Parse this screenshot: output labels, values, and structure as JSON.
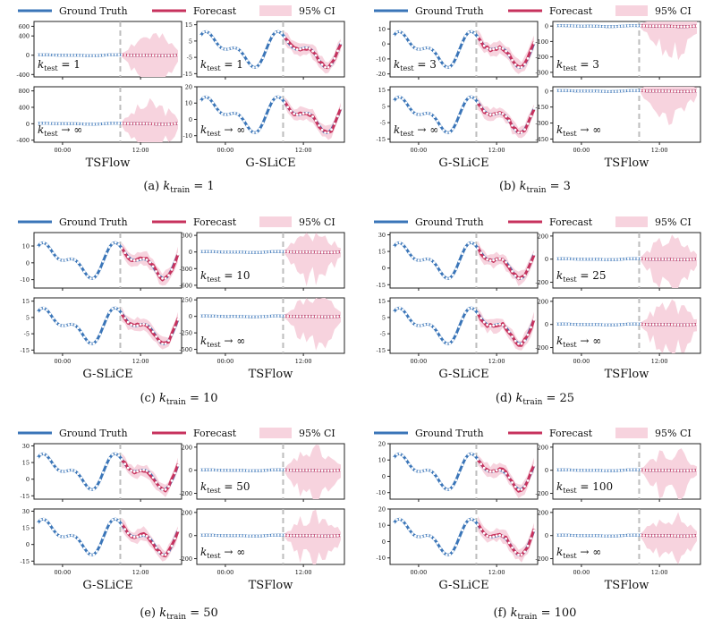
{
  "legend": {
    "ground_truth": "Ground Truth",
    "forecast": "Forecast",
    "ci": "95% CI"
  },
  "colors": {
    "ground_truth": "#3a75b8",
    "forecast": "#c7325d",
    "ci": "#f7d3de",
    "divider": "#bdbdbd",
    "marker": "#ffffff"
  },
  "time_ticks": [
    "00:00",
    "12:00"
  ],
  "caption_prefix": "k",
  "caption_sub": "train",
  "klabel_prefix": "k",
  "klabel_sub": "test",
  "chart_data": [
    {
      "caption": "(a)",
      "k_train": "1",
      "models": [
        "TSFlow",
        "G-SLiCE"
      ],
      "panels": [
        {
          "model": "TSFlow",
          "row": 0,
          "k_test": "1",
          "yticks": [
            -400,
            0,
            400,
            600
          ],
          "ylim": [
            -450,
            700
          ],
          "scale": 20,
          "seed": 2
        },
        {
          "model": "G-SLiCE",
          "row": 0,
          "k_test": "1",
          "yticks": [
            -15,
            -5,
            5,
            15
          ],
          "ylim": [
            -17,
            17
          ],
          "scale": 1,
          "seed": 1
        },
        {
          "model": "TSFlow",
          "row": 1,
          "k_test": "∞",
          "yticks": [
            -400,
            0,
            400,
            800
          ],
          "ylim": [
            -450,
            900
          ],
          "scale": 22,
          "seed": 3
        },
        {
          "model": "G-SLiCE",
          "row": 1,
          "k_test": "∞",
          "yticks": [
            -10,
            0,
            10,
            20
          ],
          "ylim": [
            -14,
            20
          ],
          "scale": 1,
          "seed": 4
        }
      ]
    },
    {
      "caption": "(b)",
      "k_train": "3",
      "models": [
        "G-SLiCE",
        "TSFlow"
      ],
      "panels": [
        {
          "model": "G-SLiCE",
          "row": 0,
          "k_test": "3",
          "yticks": [
            -20,
            -10,
            0,
            10
          ],
          "ylim": [
            -22,
            15
          ],
          "scale": 1,
          "seed": 5
        },
        {
          "model": "TSFlow",
          "row": 0,
          "k_test": "3",
          "yticks": [
            -300,
            -200,
            -100,
            0
          ],
          "ylim": [
            -330,
            30
          ],
          "scale": 18,
          "seed": 6
        },
        {
          "model": "G-SLiCE",
          "row": 1,
          "k_test": "∞",
          "yticks": [
            -15,
            -5,
            5,
            15
          ],
          "ylim": [
            -17,
            17
          ],
          "scale": 1,
          "seed": 7
        },
        {
          "model": "TSFlow",
          "row": 1,
          "k_test": "∞",
          "yticks": [
            -450,
            -300,
            -150,
            0
          ],
          "ylim": [
            -480,
            40
          ],
          "scale": 25,
          "seed": 8
        }
      ]
    },
    {
      "caption": "(c)",
      "k_train": "10",
      "models": [
        "G-SLiCE",
        "TSFlow"
      ],
      "panels": [
        {
          "model": "G-SLiCE",
          "row": 0,
          "k_test": "",
          "yticks": [
            -10,
            0,
            10
          ],
          "ylim": [
            -15,
            18
          ],
          "scale": 1,
          "seed": 9
        },
        {
          "model": "TSFlow",
          "row": 0,
          "k_test": "10",
          "yticks": [
            -600,
            -300,
            0,
            300
          ],
          "ylim": [
            -650,
            350
          ],
          "scale": 30,
          "seed": 10
        },
        {
          "model": "G-SLiCE",
          "row": 1,
          "k_test": "",
          "yticks": [
            -15,
            -5,
            5,
            15
          ],
          "ylim": [
            -17,
            17
          ],
          "scale": 1,
          "seed": 11
        },
        {
          "model": "TSFlow",
          "row": 1,
          "k_test": "∞",
          "yticks": [
            -500,
            -250,
            0,
            250
          ],
          "ylim": [
            -560,
            280
          ],
          "scale": 26,
          "seed": 12
        }
      ]
    },
    {
      "caption": "(d)",
      "k_train": "25",
      "models": [
        "G-SLiCE",
        "TSFlow"
      ],
      "panels": [
        {
          "model": "G-SLiCE",
          "row": 0,
          "k_test": "",
          "yticks": [
            -15,
            0,
            15,
            30
          ],
          "ylim": [
            -18,
            32
          ],
          "scale": 1,
          "seed": 13
        },
        {
          "model": "TSFlow",
          "row": 0,
          "k_test": "25",
          "yticks": [
            -200,
            0,
            200
          ],
          "ylim": [
            -250,
            230
          ],
          "scale": 12,
          "seed": 14
        },
        {
          "model": "G-SLiCE",
          "row": 1,
          "k_test": "",
          "yticks": [
            -15,
            -5,
            5,
            15
          ],
          "ylim": [
            -17,
            17
          ],
          "scale": 1,
          "seed": 15
        },
        {
          "model": "TSFlow",
          "row": 1,
          "k_test": "∞",
          "yticks": [
            -200,
            0,
            200
          ],
          "ylim": [
            -250,
            230
          ],
          "scale": 12,
          "seed": 16
        }
      ]
    },
    {
      "caption": "(e)",
      "k_train": "50",
      "models": [
        "G-SLiCE",
        "TSFlow"
      ],
      "panels": [
        {
          "model": "G-SLiCE",
          "row": 0,
          "k_test": "",
          "yticks": [
            -15,
            0,
            15,
            30
          ],
          "ylim": [
            -18,
            32
          ],
          "scale": 1,
          "seed": 17
        },
        {
          "model": "TSFlow",
          "row": 0,
          "k_test": "50",
          "yticks": [
            -200,
            0,
            200
          ],
          "ylim": [
            -250,
            230
          ],
          "scale": 12,
          "seed": 18
        },
        {
          "model": "G-SLiCE",
          "row": 1,
          "k_test": "",
          "yticks": [
            -15,
            0,
            15,
            30
          ],
          "ylim": [
            -18,
            32
          ],
          "scale": 1,
          "seed": 19
        },
        {
          "model": "TSFlow",
          "row": 1,
          "k_test": "∞",
          "yticks": [
            -200,
            0,
            200
          ],
          "ylim": [
            -250,
            230
          ],
          "scale": 12,
          "seed": 20
        }
      ]
    },
    {
      "caption": "(f)",
      "k_train": "100",
      "models": [
        "G-SLiCE",
        "TSFlow"
      ],
      "panels": [
        {
          "model": "G-SLiCE",
          "row": 0,
          "k_test": "",
          "yticks": [
            -10,
            0,
            10,
            20
          ],
          "ylim": [
            -14,
            20
          ],
          "scale": 1,
          "seed": 21
        },
        {
          "model": "TSFlow",
          "row": 0,
          "k_test": "100",
          "yticks": [
            -200,
            0,
            200
          ],
          "ylim": [
            -250,
            230
          ],
          "scale": 12,
          "seed": 22
        },
        {
          "model": "G-SLiCE",
          "row": 1,
          "k_test": "",
          "yticks": [
            -10,
            0,
            10,
            20
          ],
          "ylim": [
            -14,
            20
          ],
          "scale": 1,
          "seed": 23
        },
        {
          "model": "TSFlow",
          "row": 1,
          "k_test": "∞",
          "yticks": [
            -200,
            0,
            200
          ],
          "ylim": [
            -250,
            230
          ],
          "scale": 12,
          "seed": 24
        }
      ]
    }
  ]
}
